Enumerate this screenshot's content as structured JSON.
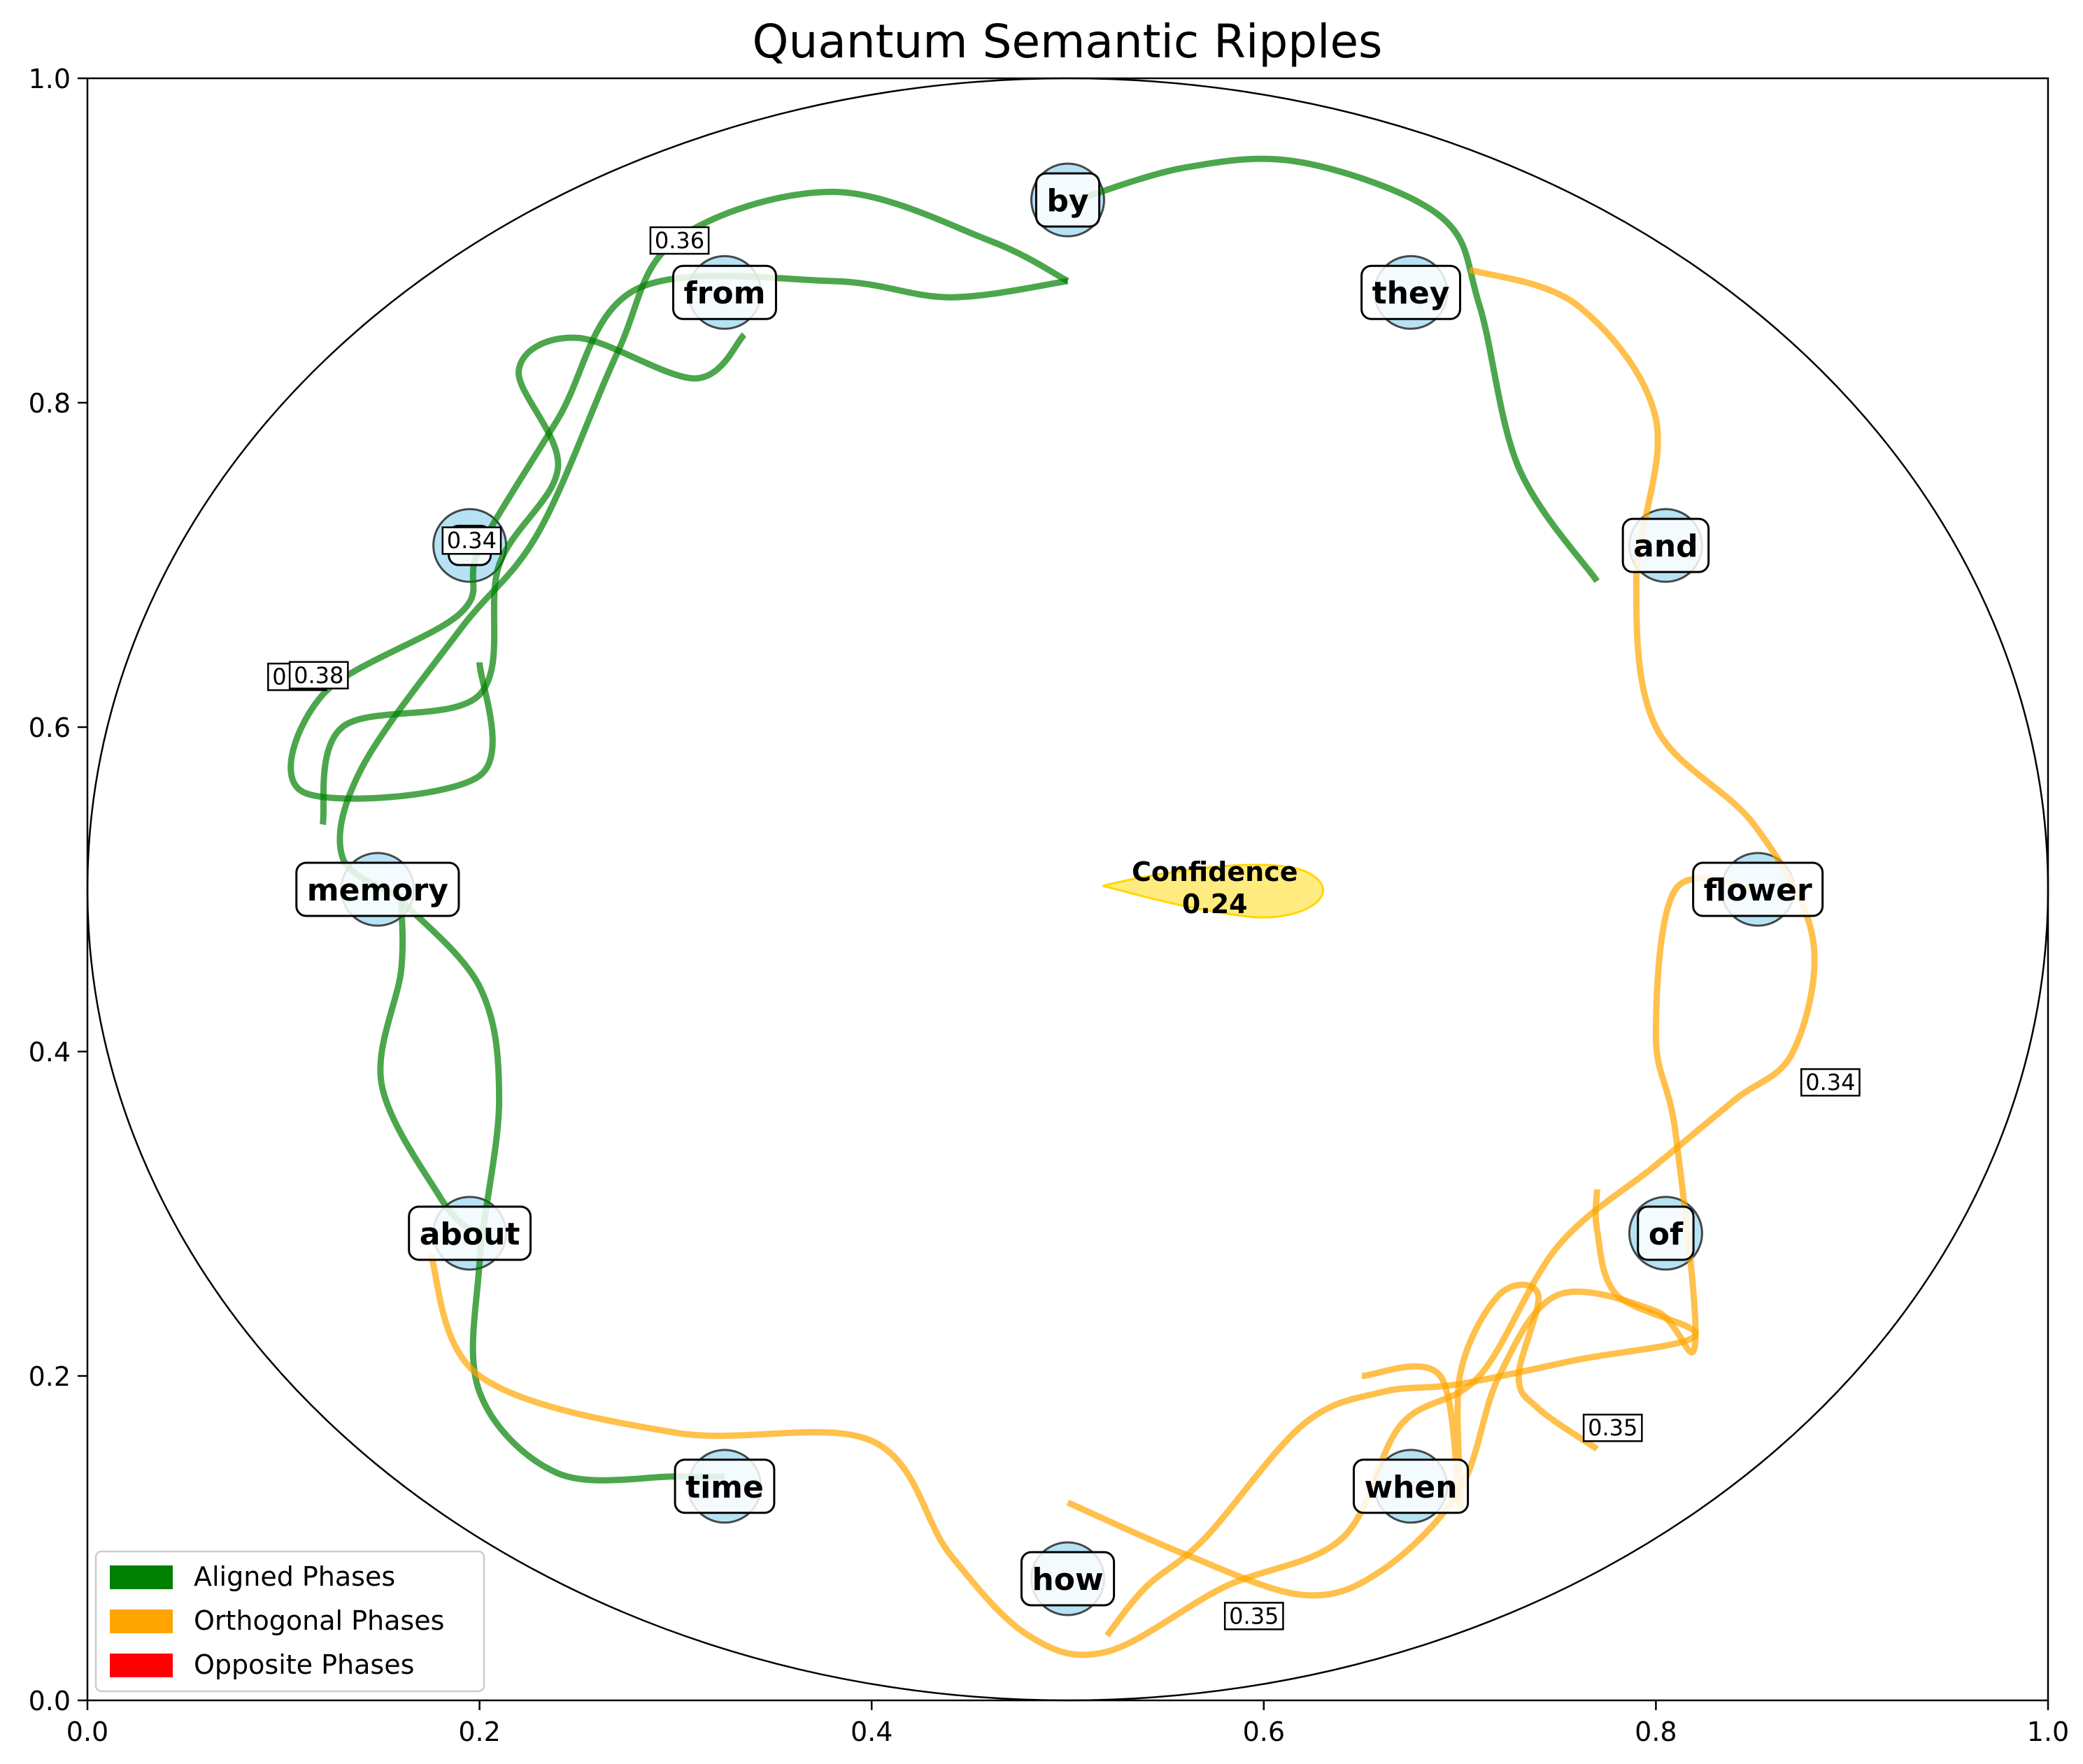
{
  "chart_data": {
    "type": "network",
    "title": "Quantum Semantic Ripples",
    "xlim": [
      0,
      1
    ],
    "ylim": [
      0,
      1
    ],
    "xticks": [
      "0.0",
      "0.2",
      "0.4",
      "0.6",
      "0.8",
      "1.0"
    ],
    "yticks": [
      "0.0",
      "0.2",
      "0.4",
      "0.6",
      "0.8",
      "1.0"
    ],
    "circle": {
      "cx": 0.5,
      "cy": 0.5,
      "r": 0.5
    },
    "nodes": [
      {
        "label": "by",
        "x": 0.5,
        "y": 0.925
      },
      {
        "label": "they",
        "x": 0.675,
        "y": 0.868
      },
      {
        "label": "and",
        "x": 0.805,
        "y": 0.712
      },
      {
        "label": "flower",
        "x": 0.852,
        "y": 0.5
      },
      {
        "label": "of",
        "x": 0.805,
        "y": 0.288
      },
      {
        "label": "when",
        "x": 0.675,
        "y": 0.132
      },
      {
        "label": "how",
        "x": 0.5,
        "y": 0.075
      },
      {
        "label": "time",
        "x": 0.325,
        "y": 0.132
      },
      {
        "label": "about",
        "x": 0.195,
        "y": 0.288
      },
      {
        "label": "memory",
        "x": 0.148,
        "y": 0.5
      },
      {
        "label": "",
        "x": 0.195,
        "y": 0.712
      },
      {
        "label": "from",
        "x": 0.325,
        "y": 0.868
      }
    ],
    "edges": [
      {
        "phase": "Aligned Phases",
        "color": "#008000",
        "points": [
          [
            0.5,
            0.875
          ],
          [
            0.46,
            0.9
          ],
          [
            0.38,
            0.93
          ],
          [
            0.3,
            0.9
          ],
          [
            0.27,
            0.83
          ],
          [
            0.23,
            0.72
          ],
          [
            0.19,
            0.66
          ],
          [
            0.14,
            0.575
          ],
          [
            0.13,
            0.52
          ],
          [
            0.16,
            0.495
          ]
        ]
      },
      {
        "phase": "Aligned Phases",
        "color": "#008000",
        "points": [
          [
            0.5,
            0.923
          ],
          [
            0.56,
            0.945
          ],
          [
            0.62,
            0.948
          ],
          [
            0.69,
            0.915
          ],
          [
            0.71,
            0.86
          ],
          [
            0.73,
            0.76
          ],
          [
            0.77,
            0.69
          ]
        ]
      },
      {
        "phase": "Aligned Phases",
        "color": "#008000",
        "points": [
          [
            0.335,
            0.842
          ],
          [
            0.31,
            0.815
          ],
          [
            0.25,
            0.84
          ],
          [
            0.22,
            0.82
          ],
          [
            0.24,
            0.76
          ],
          [
            0.21,
            0.7
          ],
          [
            0.2,
            0.62
          ],
          [
            0.13,
            0.6
          ],
          [
            0.12,
            0.54
          ]
        ]
      },
      {
        "phase": "Aligned Phases",
        "color": "#008000",
        "points": [
          [
            0.5,
            0.875
          ],
          [
            0.44,
            0.865
          ],
          [
            0.38,
            0.875
          ],
          [
            0.28,
            0.87
          ],
          [
            0.24,
            0.79
          ],
          [
            0.2,
            0.71
          ],
          [
            0.19,
            0.67
          ],
          [
            0.12,
            0.62
          ],
          [
            0.11,
            0.56
          ],
          [
            0.2,
            0.57
          ],
          [
            0.2,
            0.64
          ]
        ]
      },
      {
        "phase": "Aligned Phases",
        "color": "#008000",
        "points": [
          [
            0.16,
            0.493
          ],
          [
            0.2,
            0.44
          ],
          [
            0.21,
            0.37
          ],
          [
            0.2,
            0.27
          ],
          [
            0.2,
            0.19
          ],
          [
            0.24,
            0.14
          ],
          [
            0.3,
            0.138
          ],
          [
            0.325,
            0.138
          ]
        ]
      },
      {
        "phase": "Aligned Phases",
        "color": "#008000",
        "points": [
          [
            0.16,
            0.493
          ],
          [
            0.16,
            0.45
          ],
          [
            0.15,
            0.38
          ],
          [
            0.18,
            0.31
          ],
          [
            0.195,
            0.29
          ]
        ]
      },
      {
        "phase": "Orthogonal Phases",
        "color": "#FFA500",
        "points": [
          [
            0.705,
            0.882
          ],
          [
            0.76,
            0.86
          ],
          [
            0.8,
            0.79
          ],
          [
            0.79,
            0.69
          ],
          [
            0.8,
            0.6
          ],
          [
            0.85,
            0.54
          ],
          [
            0.88,
            0.47
          ],
          [
            0.87,
            0.4
          ],
          [
            0.84,
            0.37
          ],
          [
            0.8,
            0.33
          ],
          [
            0.75,
            0.28
          ],
          [
            0.71,
            0.2
          ],
          [
            0.67,
            0.17
          ],
          [
            0.64,
            0.1
          ],
          [
            0.58,
            0.07
          ],
          [
            0.52,
            0.03
          ],
          [
            0.48,
            0.04
          ],
          [
            0.44,
            0.09
          ],
          [
            0.4,
            0.16
          ],
          [
            0.3,
            0.165
          ],
          [
            0.2,
            0.2
          ],
          [
            0.175,
            0.275
          ]
        ]
      },
      {
        "phase": "Orthogonal Phases",
        "color": "#FFA500",
        "points": [
          [
            0.5,
            0.122
          ],
          [
            0.56,
            0.09
          ],
          [
            0.62,
            0.065
          ],
          [
            0.66,
            0.08
          ],
          [
            0.7,
            0.13
          ],
          [
            0.72,
            0.2
          ],
          [
            0.75,
            0.25
          ],
          [
            0.8,
            0.24
          ],
          [
            0.82,
            0.22
          ],
          [
            0.81,
            0.35
          ],
          [
            0.8,
            0.41
          ],
          [
            0.81,
            0.5
          ],
          [
            0.85,
            0.5
          ]
        ]
      },
      {
        "phase": "Orthogonal Phases",
        "color": "#FFA500",
        "points": [
          [
            0.77,
            0.315
          ],
          [
            0.77,
            0.29
          ],
          [
            0.78,
            0.25
          ],
          [
            0.82,
            0.225
          ],
          [
            0.76,
            0.21
          ],
          [
            0.7,
            0.195
          ],
          [
            0.66,
            0.19
          ],
          [
            0.62,
            0.17
          ],
          [
            0.57,
            0.1
          ],
          [
            0.54,
            0.07
          ],
          [
            0.52,
            0.04
          ]
        ]
      },
      {
        "phase": "Orthogonal Phases",
        "color": "#FFA500",
        "points": [
          [
            0.77,
            0.155
          ],
          [
            0.74,
            0.18
          ],
          [
            0.73,
            0.2
          ],
          [
            0.74,
            0.25
          ],
          [
            0.72,
            0.25
          ],
          [
            0.7,
            0.2
          ],
          [
            0.7,
            0.12
          ],
          [
            0.69,
            0.2
          ],
          [
            0.65,
            0.2
          ]
        ]
      }
    ],
    "edge_labels": [
      {
        "text": "0.36",
        "x": 0.302,
        "y": 0.9
      },
      {
        "text": "0.34",
        "x": 0.196,
        "y": 0.715
      },
      {
        "text": "0.32",
        "x": 0.107,
        "y": 0.631
      },
      {
        "text": "0.38",
        "x": 0.118,
        "y": 0.632
      },
      {
        "text": "0.34",
        "x": 0.889,
        "y": 0.381
      },
      {
        "text": "0.35",
        "x": 0.778,
        "y": 0.168
      },
      {
        "text": "0.35",
        "x": 0.595,
        "y": 0.052
      }
    ],
    "confidence": {
      "label": "Confidence",
      "value": "0.24",
      "x": 0.575,
      "y": 0.5
    },
    "legend": {
      "placement": "lower-left",
      "entries": [
        {
          "name": "Aligned Phases",
          "color": "#008000"
        },
        {
          "name": "Orthogonal Phases",
          "color": "#FFA500"
        },
        {
          "name": "Opposite Phases",
          "color": "#FF0000"
        }
      ]
    }
  }
}
